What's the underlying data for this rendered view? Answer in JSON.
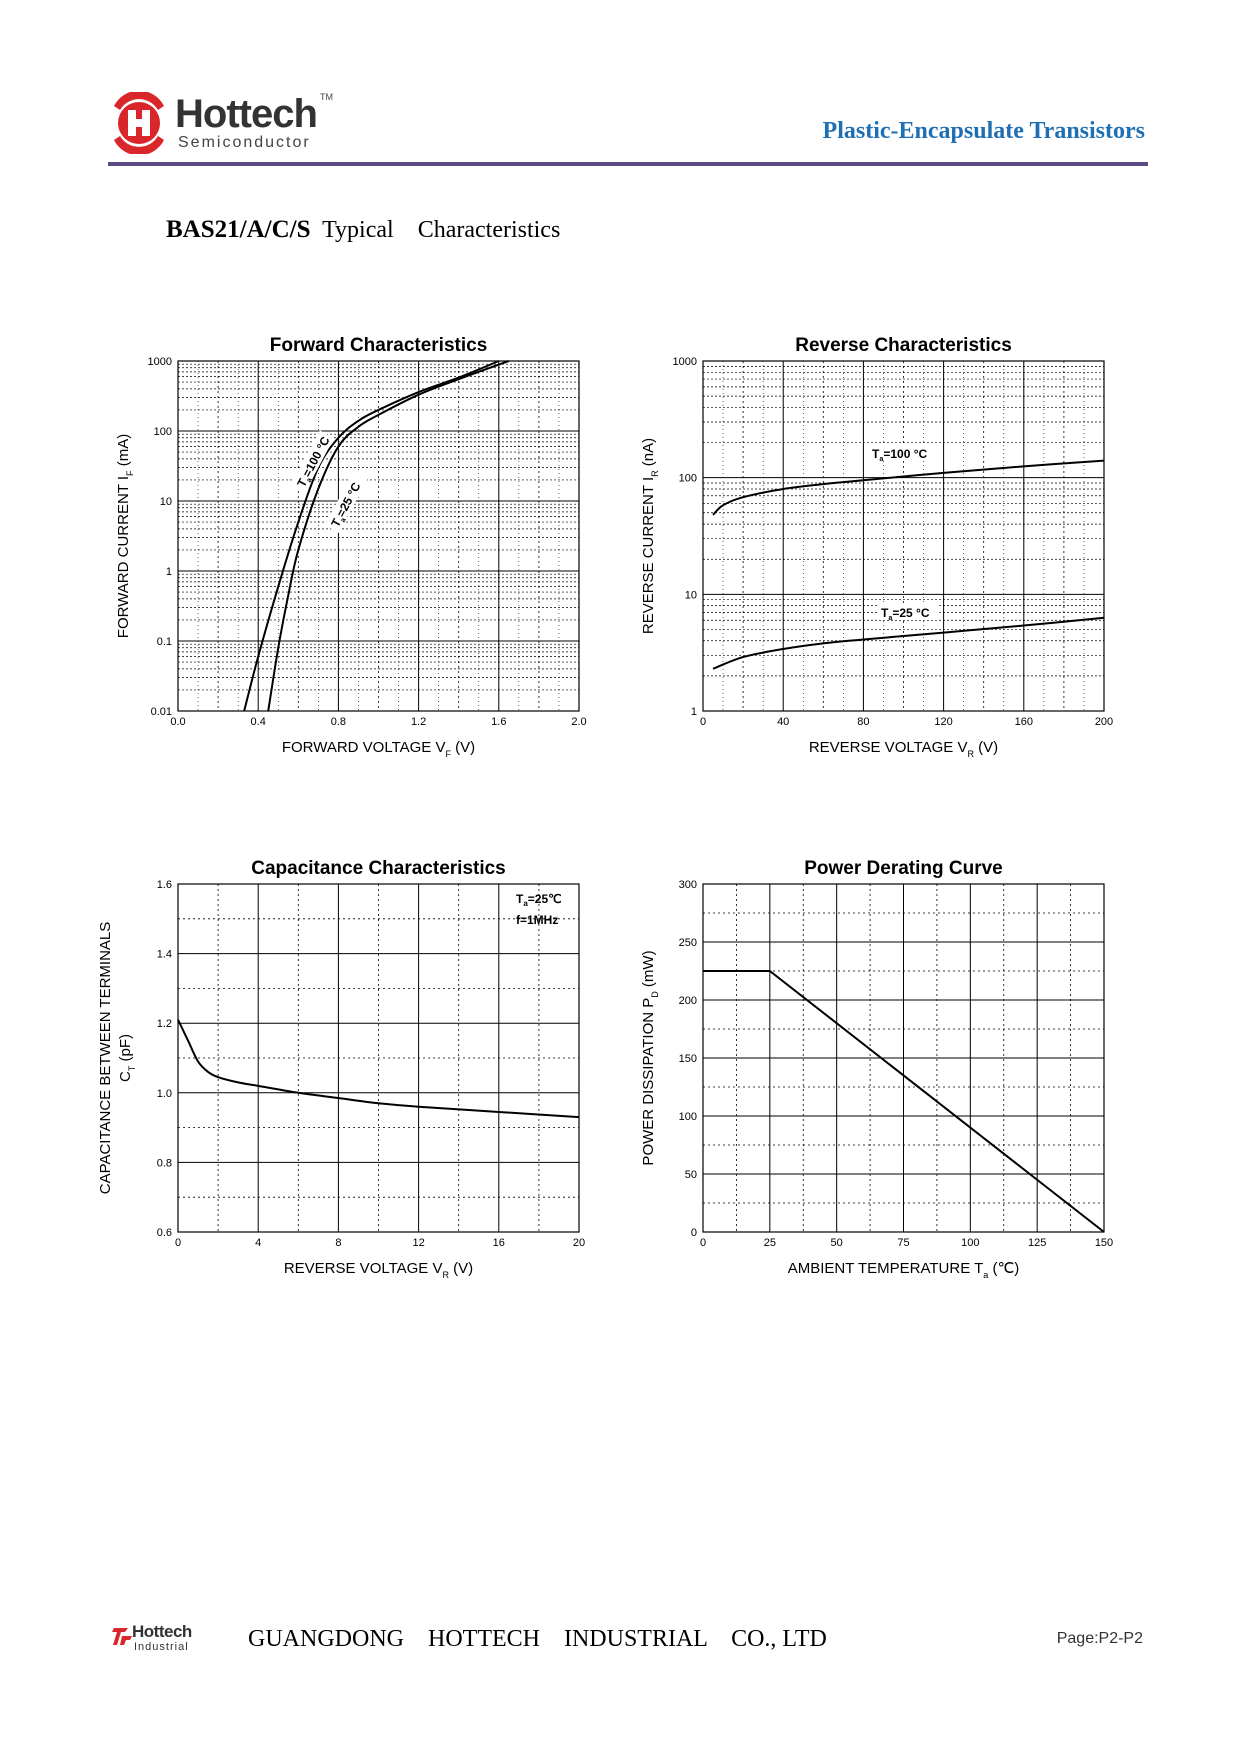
{
  "header": {
    "brand": "Hottech",
    "brand_tm": "TM",
    "brand_sub": "Semiconductor",
    "title": "Plastic-Encapsulate Transistors"
  },
  "doc": {
    "part": "BAS21/A/C/S",
    "subtitle": "Typical    Characteristics"
  },
  "footer": {
    "logo_name": "Hottech",
    "logo_sub": "Industrial",
    "company": "GUANGDONG    HOTTECH    INDUSTRIAL    CO., LTD",
    "page": "Page:P2-P2"
  },
  "colors": {
    "accent": "#1f6fb5",
    "rule": "#5a4a86",
    "logo_red": "#d9262b"
  },
  "chart_data": [
    {
      "type": "line",
      "title": "Forward    Characteristics",
      "xlabel": "FORWARD VOLTAGE   V",
      "xlabel_sub": "F",
      "xlabel_unit": "(V)",
      "ylabel": "FORWARD CURRENT   I",
      "ylabel_sub": "F",
      "ylabel_unit": "(mA)",
      "yscale": "log",
      "xlim": [
        0.0,
        2.0
      ],
      "ylim": [
        0.01,
        1000
      ],
      "xticks": [
        "0.0",
        "0.4",
        "0.8",
        "1.2",
        "1.6",
        "2.0"
      ],
      "yticks": [
        "0.01",
        "0.1",
        "1",
        "10",
        "100",
        "1000"
      ],
      "series": [
        {
          "name": "Ta=100 °C",
          "label": "T",
          "label_sub": "a",
          "label_rest": "=100 °C",
          "x": [
            0.33,
            0.4,
            0.5,
            0.6,
            0.7,
            0.8,
            0.9,
            1.0,
            1.2,
            1.4,
            1.6
          ],
          "y": [
            0.01,
            0.06,
            0.6,
            5,
            30,
            80,
            140,
            200,
            360,
            580,
            1000
          ]
        },
        {
          "name": "Ta=25 °C",
          "label": "T",
          "label_sub": "a",
          "label_rest": "=25 °C",
          "x": [
            0.45,
            0.5,
            0.55,
            0.6,
            0.7,
            0.8,
            0.9,
            1.0,
            1.2,
            1.4,
            1.65
          ],
          "y": [
            0.01,
            0.08,
            0.45,
            2,
            15,
            60,
            115,
            170,
            330,
            550,
            1000
          ]
        }
      ]
    },
    {
      "type": "line",
      "title": "Reverse    Characteristics",
      "xlabel": "REVERSE VOLTAGE   V",
      "xlabel_sub": "R",
      "xlabel_unit": "(V)",
      "ylabel": "REVERSE CURRENT   I",
      "ylabel_sub": "R",
      "ylabel_unit": "(nA)",
      "yscale": "log",
      "xlim": [
        0,
        200
      ],
      "ylim": [
        1,
        1000
      ],
      "xticks": [
        "0",
        "40",
        "80",
        "120",
        "160",
        "200"
      ],
      "yticks": [
        "1",
        "10",
        "100",
        "1000"
      ],
      "series": [
        {
          "name": "Ta=100 °C",
          "label": "T",
          "label_sub": "a",
          "label_rest": "=100 °C",
          "x": [
            5,
            10,
            20,
            40,
            60,
            80,
            120,
            160,
            200
          ],
          "y": [
            48,
            58,
            68,
            80,
            88,
            95,
            110,
            125,
            140
          ]
        },
        {
          "name": "Ta=25 °C",
          "label": "T",
          "label_sub": "a",
          "label_rest": "=25 °C",
          "x": [
            5,
            20,
            40,
            60,
            80,
            120,
            160,
            200
          ],
          "y": [
            2.3,
            2.9,
            3.4,
            3.8,
            4.1,
            4.7,
            5.4,
            6.3
          ]
        }
      ]
    },
    {
      "type": "line",
      "title": "Capacitance Characteristics",
      "xlabel": "REVERSE VOLTAGE   V",
      "xlabel_sub": "R",
      "xlabel_unit": "(V)",
      "ylabel_line1": "CAPACITANCE BETWEEN TERMINALS",
      "ylabel": "C",
      "ylabel_sub": "T",
      "ylabel_unit": "(pF)",
      "xlim": [
        0,
        20
      ],
      "ylim": [
        0.6,
        1.6
      ],
      "xticks": [
        "0",
        "4",
        "8",
        "12",
        "16",
        "20"
      ],
      "yticks": [
        "0.6",
        "0.8",
        "1.0",
        "1.2",
        "1.4",
        "1.6"
      ],
      "annotation": {
        "l1": "T",
        "l1_sub": "a",
        "l1_rest": "=25℃",
        "l2": "f=1MHz"
      },
      "series": [
        {
          "name": "CT",
          "x": [
            0,
            0.5,
            1,
            1.5,
            2,
            3,
            4,
            6,
            8,
            10,
            12,
            16,
            20
          ],
          "y": [
            1.21,
            1.15,
            1.09,
            1.06,
            1.045,
            1.03,
            1.02,
            1.0,
            0.985,
            0.97,
            0.96,
            0.945,
            0.93
          ]
        }
      ]
    },
    {
      "type": "line",
      "title": "Power Derating Curve",
      "xlabel": "AMBIENT TEMPERATURE   T",
      "xlabel_sub": "a",
      "xlabel_unit": "(℃)",
      "ylabel": "POWER DISSIPATION   P",
      "ylabel_sub": "D",
      "ylabel_unit": "(mW)",
      "xlim": [
        0,
        150
      ],
      "ylim": [
        0,
        300
      ],
      "xticks": [
        "0",
        "25",
        "50",
        "75",
        "100",
        "125",
        "150"
      ],
      "yticks": [
        "0",
        "50",
        "100",
        "150",
        "200",
        "250",
        "300"
      ],
      "series": [
        {
          "name": "PD",
          "x": [
            0,
            25,
            150
          ],
          "y": [
            225,
            225,
            0
          ]
        }
      ]
    }
  ]
}
